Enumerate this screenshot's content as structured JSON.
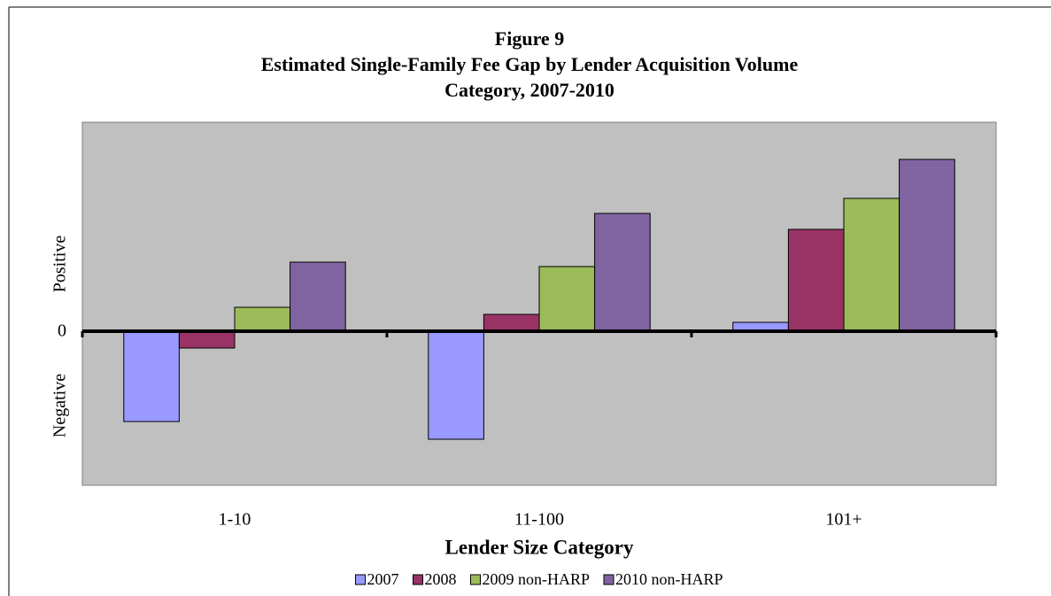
{
  "chart_data": {
    "type": "bar",
    "title_lines": [
      "Figure 9",
      "Estimated Single-Family Fee Gap by Lender Acquisition Volume",
      "Category, 2007-2010"
    ],
    "x_label": "Lender Size Category",
    "y_positive_label": "Positive",
    "y_negative_label": "Negative",
    "categories": [
      "1-10",
      "11-100",
      "101+"
    ],
    "series": [
      {
        "name": "2007",
        "color": "#9999ff",
        "values": [
          -10.2,
          -12.2,
          1.0
        ]
      },
      {
        "name": "2008",
        "color": "#993366",
        "values": [
          -1.9,
          1.9,
          11.5
        ]
      },
      {
        "name": "2009 non-HARP",
        "color": "#9bbb59",
        "values": [
          2.7,
          7.3,
          15.0
        ]
      },
      {
        "name": "2010 non-HARP",
        "color": "#8064a2",
        "values": [
          7.8,
          13.3,
          19.4
        ]
      }
    ],
    "ylim": [
      -17.4,
      23.6
    ],
    "yticks": [
      0
    ]
  }
}
